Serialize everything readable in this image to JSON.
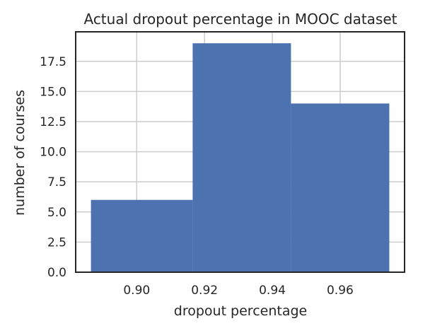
{
  "chart_data": {
    "type": "bar",
    "title": "Actual dropout percentage in MOOC dataset",
    "xlabel": "dropout percentage",
    "ylabel": "number of courses",
    "bins": [
      {
        "x0": 0.8865,
        "x1": 0.9165,
        "value": 6
      },
      {
        "x0": 0.9165,
        "x1": 0.9455,
        "value": 19
      },
      {
        "x0": 0.9455,
        "x1": 0.9745,
        "value": 14
      }
    ],
    "xlim": [
      0.882,
      0.979
    ],
    "ylim": [
      0,
      19.95
    ],
    "xticks": [
      0.9,
      0.92,
      0.94,
      0.96
    ],
    "xtick_labels": [
      "0.90",
      "0.92",
      "0.94",
      "0.96"
    ],
    "yticks": [
      0.0,
      2.5,
      5.0,
      7.5,
      10.0,
      12.5,
      15.0,
      17.5
    ],
    "ytick_labels": [
      "0.0",
      "2.5",
      "5.0",
      "7.5",
      "10.0",
      "12.5",
      "15.0",
      "17.5"
    ],
    "grid": true,
    "bar_color": "#4c72b0",
    "grid_color": "#cccccc",
    "axes_color": "#262626"
  }
}
